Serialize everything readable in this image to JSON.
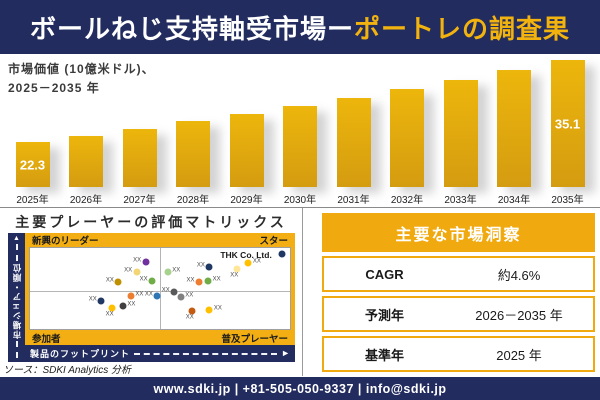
{
  "title": {
    "main": "ボールねじ支持軸受市場ー",
    "accent": "ポートレの調査果"
  },
  "colors": {
    "navy": "#232c5f",
    "gold_panel": "#f2ae12",
    "gold_header": "#f0a90f",
    "bar_top": "#edb60c",
    "bar_bottom": "#d49c10",
    "accent_text": "#f2b30f"
  },
  "chart_data": [
    {
      "type": "bar",
      "title": "市場価値 (10億米ドル)、2025－2035年",
      "title_line1": "市場価値 (10億米ドル)、",
      "title_line2": "2025－2035 年",
      "categories": [
        "2025年",
        "2026年",
        "2027年",
        "2028年",
        "2029年",
        "2030年",
        "2031年",
        "2032年",
        "2033年",
        "2034年",
        "2035年"
      ],
      "values": [
        22.3,
        23.3,
        24.4,
        25.5,
        26.7,
        27.9,
        29.2,
        30.6,
        32.0,
        33.5,
        35.1
      ],
      "labeled_bars": {
        "0": "22.3",
        "10": "35.1"
      },
      "xlabel": "",
      "ylabel": "",
      "ylim": [
        0,
        40
      ],
      "grid": false,
      "legend": false
    },
    {
      "type": "scatter",
      "title": "主要プレーヤーの評価マトリックス",
      "xlabel": "製品のフットプリント",
      "ylabel": "市場シェア・順位",
      "quadrants": {
        "top_left": "新興のリーダー",
        "top_right": "スター",
        "bottom_left": "参加者",
        "bottom_right": "普及プレーヤー"
      },
      "point_label": "XX",
      "highlight_company": "THK Co. Ltd.",
      "points": [
        {
          "x": 44.5,
          "y": 17,
          "color": "#7030a0",
          "label_pos": "l"
        },
        {
          "x": 41,
          "y": 30,
          "color": "#f2d575",
          "label_pos": "l"
        },
        {
          "x": 34,
          "y": 42,
          "color": "#bf9000",
          "label_pos": "l"
        },
        {
          "x": 47,
          "y": 41,
          "color": "#70ad47",
          "label_pos": "l"
        },
        {
          "x": 53,
          "y": 30,
          "color": "#a9d18e",
          "label_pos": "r"
        },
        {
          "x": 69,
          "y": 23,
          "color": "#1f3864",
          "label_pos": "l"
        },
        {
          "x": 79.5,
          "y": 26.5,
          "color": "#ffe699",
          "label_pos": "b"
        },
        {
          "x": 84,
          "y": 19,
          "color": "#ffc000",
          "label_pos": "r"
        },
        {
          "x": 65,
          "y": 42,
          "color": "#ed7d31",
          "label_pos": "l"
        },
        {
          "x": 68.5,
          "y": 41,
          "color": "#70ad47",
          "label_pos": "r"
        },
        {
          "x": 97,
          "y": 7,
          "color": "#1f3864",
          "label_pos": "none"
        },
        {
          "x": 38.8,
          "y": 59,
          "color": "#ed7d31",
          "label_pos": "r"
        },
        {
          "x": 49,
          "y": 59,
          "color": "#2e75b6",
          "label_pos": "l"
        },
        {
          "x": 27.4,
          "y": 66,
          "color": "#203864",
          "label_pos": "l"
        },
        {
          "x": 35.7,
          "y": 71,
          "color": "#404040",
          "label_pos": "r"
        },
        {
          "x": 31.6,
          "y": 73.5,
          "color": "#ffc000",
          "label_pos": "b"
        },
        {
          "x": 55.5,
          "y": 54,
          "color": "#595959",
          "label_pos": "l"
        },
        {
          "x": 58,
          "y": 61,
          "color": "#808080",
          "label_pos": "r"
        },
        {
          "x": 62.4,
          "y": 78,
          "color": "#c55a11",
          "label_pos": "b"
        },
        {
          "x": 69,
          "y": 77,
          "color": "#ffc000",
          "label_pos": "r"
        }
      ]
    }
  ],
  "insights": {
    "header": "主要な市場洞察",
    "rows": [
      {
        "label": "CAGR",
        "value": "約4.6%"
      },
      {
        "label": "予測年",
        "value": "2026－2035 年"
      },
      {
        "label": "基準年",
        "value": "2025 年"
      }
    ]
  },
  "source": "ソース：SDKI Analytics 分析",
  "footer": "www.sdki.jp | +81-505-050-9337 | info@sdki.jp"
}
